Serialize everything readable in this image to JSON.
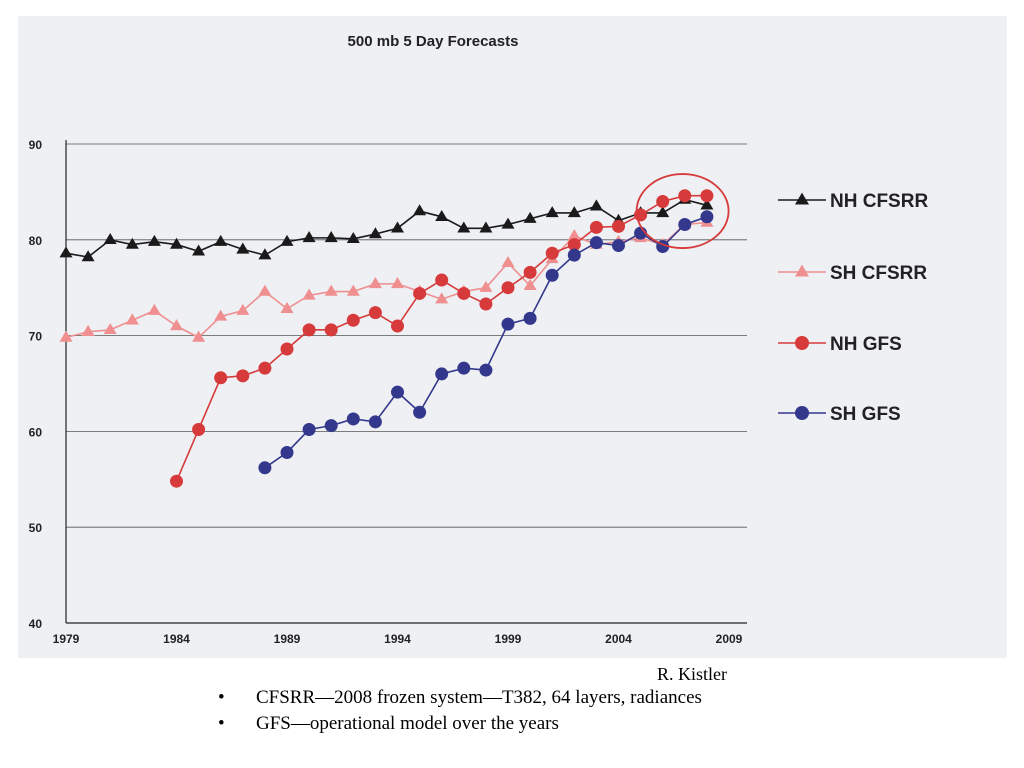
{
  "chart_data": {
    "type": "line",
    "title": "500 mb 5 Day Forecasts",
    "xlabel": "",
    "ylabel": "",
    "xlim": [
      1979,
      2009
    ],
    "ylim": [
      40,
      90
    ],
    "x_ticks": [
      1979,
      1984,
      1989,
      1994,
      1999,
      2004,
      2009
    ],
    "y_ticks": [
      40,
      50,
      60,
      70,
      80,
      90
    ],
    "grid": "horizontal",
    "legend_position": "right",
    "annotation": "red circle around 2006-2008 points",
    "series": [
      {
        "name": "NH CFSRR",
        "color": "#1a1a1a",
        "marker": "triangle",
        "x": [
          1979,
          1980,
          1981,
          1982,
          1983,
          1984,
          1985,
          1986,
          1987,
          1988,
          1989,
          1990,
          1991,
          1992,
          1993,
          1994,
          1995,
          1996,
          1997,
          1998,
          1999,
          2000,
          2001,
          2002,
          2003,
          2004,
          2005,
          2006,
          2007,
          2008
        ],
        "y": [
          78.6,
          78.2,
          80.0,
          79.5,
          79.8,
          79.5,
          78.8,
          79.8,
          79.0,
          78.4,
          79.8,
          80.2,
          80.2,
          80.1,
          80.6,
          81.2,
          83.0,
          82.4,
          81.2,
          81.2,
          81.6,
          82.2,
          82.8,
          82.8,
          83.5,
          82.0,
          82.8,
          82.8,
          84.2,
          83.6
        ]
      },
      {
        "name": "SH CFSRR",
        "color": "#ef8f8f",
        "marker": "triangle",
        "x": [
          1979,
          1980,
          1981,
          1982,
          1983,
          1984,
          1985,
          1986,
          1987,
          1988,
          1989,
          1990,
          1991,
          1992,
          1993,
          1994,
          1995,
          1996,
          1997,
          1998,
          1999,
          2000,
          2001,
          2002,
          2003,
          2004,
          2005,
          2006,
          2007,
          2008
        ],
        "y": [
          69.8,
          70.4,
          70.6,
          71.6,
          72.6,
          71.0,
          69.8,
          72.0,
          72.6,
          74.6,
          72.8,
          74.2,
          74.6,
          74.6,
          75.4,
          75.4,
          74.6,
          73.8,
          74.6,
          75.0,
          77.6,
          75.2,
          78.0,
          80.4,
          79.5,
          79.8,
          80.2,
          79.5,
          81.6,
          81.8
        ]
      },
      {
        "name": "NH GFS",
        "color": "#d63a3a",
        "marker": "circle",
        "x": [
          1984,
          1985,
          1986,
          1987,
          1988,
          1989,
          1990,
          1991,
          1992,
          1993,
          1994,
          1995,
          1996,
          1997,
          1998,
          1999,
          2000,
          2001,
          2002,
          2003,
          2004,
          2005,
          2006,
          2007,
          2008
        ],
        "y": [
          54.8,
          60.2,
          65.6,
          65.8,
          66.6,
          68.6,
          70.6,
          70.6,
          71.6,
          72.4,
          71.0,
          74.4,
          75.8,
          74.4,
          73.3,
          75.0,
          76.6,
          78.6,
          79.5,
          81.3,
          81.4,
          82.6,
          84.0,
          84.6,
          84.6
        ]
      },
      {
        "name": "SH GFS",
        "color": "#34388c",
        "marker": "circle",
        "x": [
          1988,
          1989,
          1990,
          1991,
          1992,
          1993,
          1994,
          1995,
          1996,
          1997,
          1998,
          1999,
          2000,
          2001,
          2002,
          2003,
          2004,
          2005,
          2006,
          2007,
          2008
        ],
        "y": [
          56.2,
          57.8,
          60.2,
          60.6,
          61.3,
          61.0,
          64.1,
          62.0,
          66.0,
          66.6,
          66.4,
          71.2,
          71.8,
          76.3,
          78.4,
          79.7,
          79.4,
          80.7,
          79.3,
          81.6,
          82.4
        ]
      }
    ]
  },
  "credit": "R. Kistler",
  "bullets": [
    "CFSRR—2008 frozen system—T382, 64 layers, radiances",
    "GFS—operational model over the years"
  ],
  "bullet_symbol": "•"
}
